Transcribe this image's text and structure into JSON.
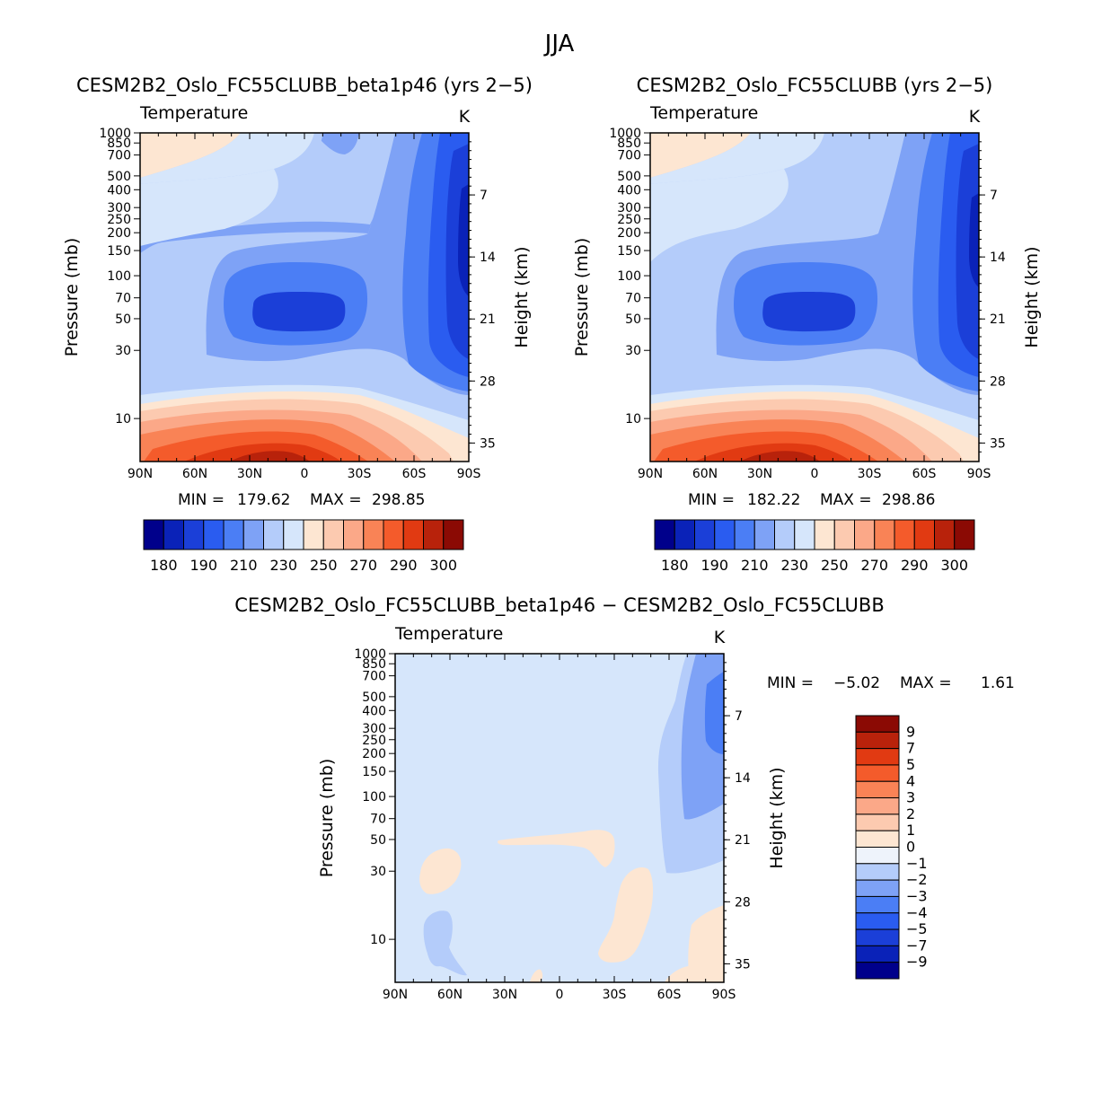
{
  "figure": {
    "title": "JJA"
  },
  "colors": {
    "negative": [
      "#00008b",
      "#0a22b8",
      "#1b3fd8",
      "#2a5cf0",
      "#4b7ef5",
      "#7ea2f6",
      "#b4ccfa",
      "#d6e6fb"
    ],
    "positive": [
      "#fde6d2",
      "#fccab0",
      "#fba888",
      "#f98356",
      "#f45b2b",
      "#e13a12",
      "#b8220b",
      "#8b0a04"
    ],
    "zero_band": "#eef3fb"
  },
  "chart_data": [
    {
      "type": "heatmap",
      "title": "CESM2B2_Oslo_FC55CLUBB_beta1p46 (yrs 2−5)",
      "variable": "Temperature",
      "units": "K",
      "ylabel": "Pressure (mb)",
      "y2label": "Height (km)",
      "x_ticks": [
        "90N",
        "60N",
        "30N",
        "0",
        "30S",
        "60S",
        "90S"
      ],
      "y_ticks": [
        "10",
        "30",
        "50",
        "70",
        "100",
        "150",
        "200",
        "250",
        "300",
        "400",
        "500",
        "700",
        "850",
        "1000"
      ],
      "y2_ticks": [
        "35",
        "28",
        "21",
        "14",
        "7"
      ],
      "ylim": [
        1000,
        5
      ],
      "min_label": "MIN =",
      "min": "179.62",
      "max_label": "MAX =",
      "max": "298.85",
      "colorbar_levels": [
        "180",
        "190",
        "210",
        "230",
        "250",
        "270",
        "290",
        "300"
      ]
    },
    {
      "type": "heatmap",
      "title": "CESM2B2_Oslo_FC55CLUBB (yrs 2−5)",
      "variable": "Temperature",
      "units": "K",
      "ylabel": "Pressure (mb)",
      "y2label": "Height (km)",
      "x_ticks": [
        "90N",
        "60N",
        "30N",
        "0",
        "30S",
        "60S",
        "90S"
      ],
      "y_ticks": [
        "10",
        "30",
        "50",
        "70",
        "100",
        "150",
        "200",
        "250",
        "300",
        "400",
        "500",
        "700",
        "850",
        "1000"
      ],
      "y2_ticks": [
        "35",
        "28",
        "21",
        "14",
        "7"
      ],
      "ylim": [
        1000,
        5
      ],
      "min_label": "MIN =",
      "min": "182.22",
      "max_label": "MAX =",
      "max": "298.86",
      "colorbar_levels": [
        "180",
        "190",
        "210",
        "230",
        "250",
        "270",
        "290",
        "300"
      ]
    },
    {
      "type": "heatmap",
      "title": "CESM2B2_Oslo_FC55CLUBB_beta1p46 − CESM2B2_Oslo_FC55CLUBB",
      "variable": "Temperature",
      "units": "K",
      "ylabel": "Pressure (mb)",
      "y2label": "Height (km)",
      "x_ticks": [
        "90N",
        "60N",
        "30N",
        "0",
        "30S",
        "60S",
        "90S"
      ],
      "y_ticks": [
        "10",
        "30",
        "50",
        "70",
        "100",
        "150",
        "200",
        "250",
        "300",
        "400",
        "500",
        "700",
        "850",
        "1000"
      ],
      "y2_ticks": [
        "35",
        "28",
        "21",
        "14",
        "7"
      ],
      "ylim": [
        1000,
        5
      ],
      "min_label": "MIN =",
      "min": "−5.02",
      "max_label": "MAX =",
      "max": "1.61",
      "colorbar_levels": [
        "9",
        "7",
        "5",
        "4",
        "3",
        "2",
        "1",
        "0",
        "−1",
        "−2",
        "−3",
        "−4",
        "−5",
        "−7",
        "−9"
      ]
    }
  ]
}
